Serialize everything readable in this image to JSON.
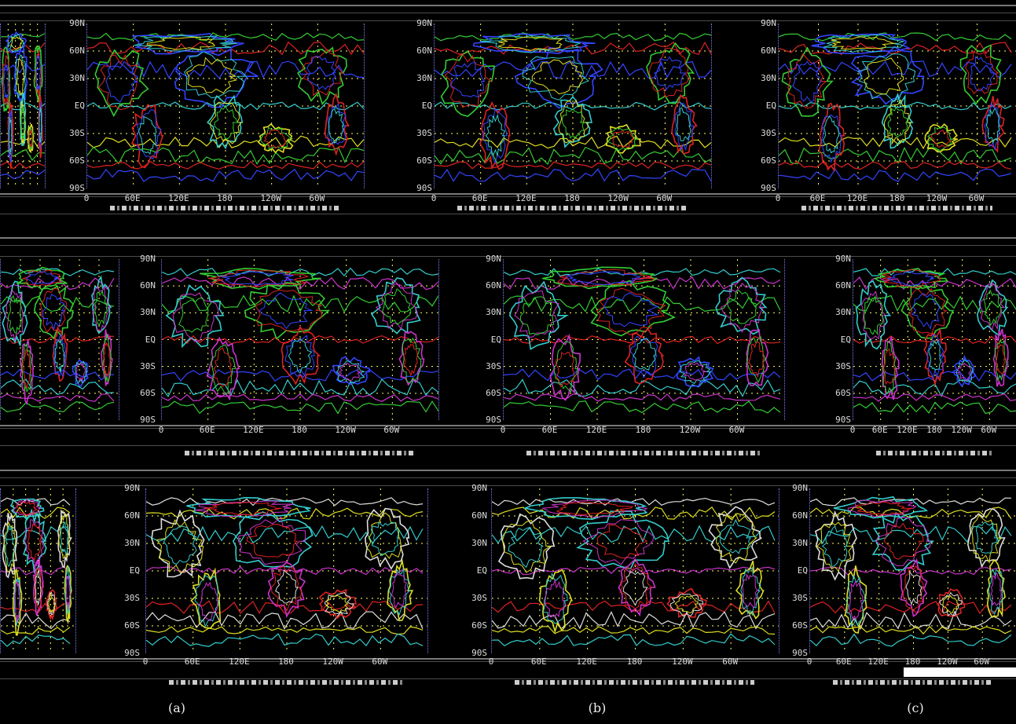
{
  "lat_labels": [
    "90N",
    "60N",
    "30N",
    "EQ",
    "30S",
    "60S",
    "90S"
  ],
  "lon_labels": [
    "0",
    "60E",
    "120E",
    "180",
    "120W",
    "60W"
  ],
  "subfigure_labels": [
    "(a)",
    "(b)",
    "(c)"
  ],
  "colors": {
    "background": "#000000",
    "grid": "#ffff66",
    "coast_green": "#33cc33",
    "coast_cyan": "#33cccc",
    "coast_yellow": "#dddd22",
    "contour_red": "#dd2222",
    "contour_blue": "#3344ff",
    "contour_magenta": "#cc33cc",
    "contour_white": "#dddddd"
  }
}
